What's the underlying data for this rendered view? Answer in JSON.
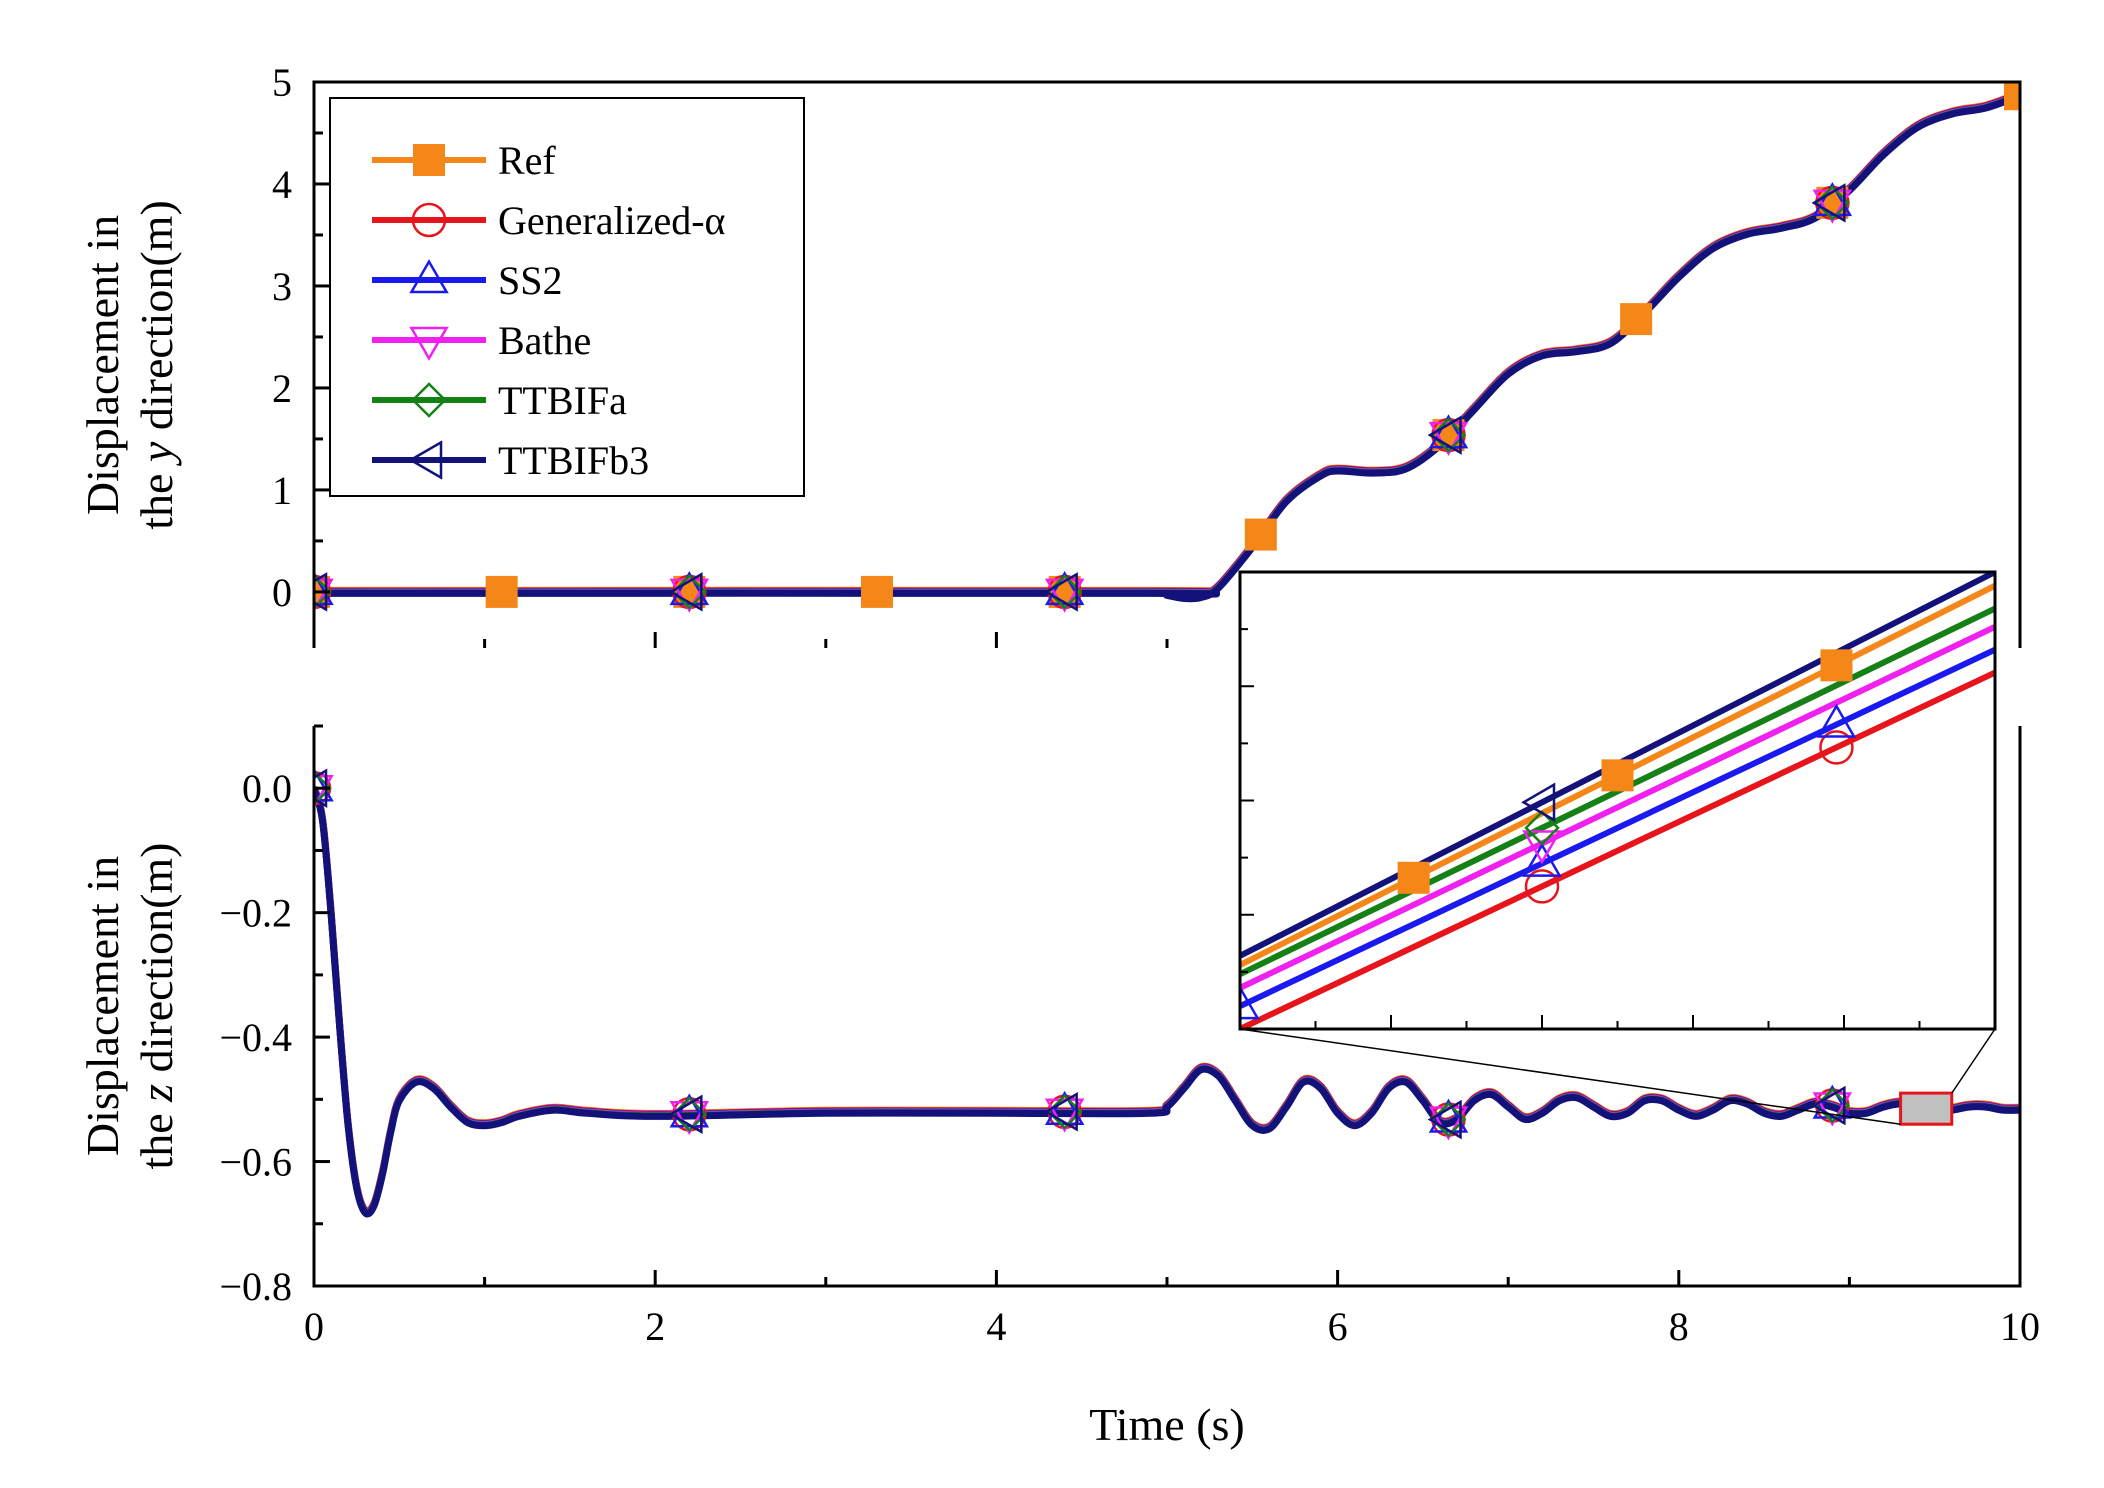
{
  "chart_data": [
    {
      "type": "line",
      "panel": "top",
      "ylabel_lines": [
        "Displacement in",
        "the y direction(m)"
      ],
      "ylabel_italic_letter": "y",
      "xlabel": "Time (s)",
      "xlim": [
        0,
        10
      ],
      "ylim": [
        -0.55,
        5
      ],
      "xticks": [
        "0",
        "2",
        "4",
        "6",
        "8",
        "10"
      ],
      "yticks": [
        "0",
        "1",
        "2",
        "3",
        "4",
        "5"
      ],
      "legend": [
        "Ref",
        "Generalized-α",
        "SS2",
        "Bathe",
        "TTBIFa",
        "TTBIFb3"
      ],
      "legend_position": "top-left",
      "series": [
        {
          "name": "Ref",
          "color": "#F58718",
          "marker": "square-filled",
          "marker_x": [
            0,
            1.1,
            2.2,
            3.3,
            4.4,
            5.55,
            6.65,
            7.75,
            8.9,
            10
          ]
        },
        {
          "name": "Generalized-α",
          "color": "#E8141B",
          "marker": "circle-open",
          "marker_x": [
            0,
            2.2,
            4.4,
            6.65,
            8.9
          ]
        },
        {
          "name": "SS2",
          "color": "#1A1AF0",
          "marker": "triangle-up-open",
          "marker_x": [
            0,
            2.2,
            4.4,
            6.65,
            8.9
          ]
        },
        {
          "name": "Bathe",
          "color": "#F020F0",
          "marker": "triangle-down-open",
          "marker_x": [
            0,
            2.2,
            4.4,
            6.65,
            8.9
          ]
        },
        {
          "name": "TTBIFa",
          "color": "#158015",
          "marker": "diamond-open",
          "marker_x": [
            0,
            2.2,
            4.4,
            6.65,
            8.9
          ]
        },
        {
          "name": "TTBIFb3",
          "color": "#12127A",
          "marker": "triangle-left-open",
          "marker_x": [
            0,
            2.2,
            4.4,
            6.65,
            8.9
          ]
        }
      ],
      "curve": {
        "t": [
          0,
          4.9,
          5.0,
          5.1,
          5.2,
          5.3,
          5.5,
          5.7,
          5.9,
          6.0,
          6.2,
          6.4,
          6.6,
          6.8,
          7.0,
          7.2,
          7.4,
          7.6,
          7.8,
          8.0,
          8.2,
          8.4,
          8.6,
          8.8,
          9.0,
          9.2,
          9.4,
          9.6,
          9.8,
          10.0
        ],
        "y": [
          0,
          0,
          -0.02,
          -0.05,
          -0.04,
          0.05,
          0.45,
          0.9,
          1.15,
          1.2,
          1.18,
          1.22,
          1.45,
          1.8,
          2.15,
          2.33,
          2.37,
          2.45,
          2.75,
          3.1,
          3.38,
          3.52,
          3.58,
          3.68,
          3.95,
          4.3,
          4.57,
          4.7,
          4.76,
          4.88
        ]
      }
    },
    {
      "type": "line",
      "panel": "bottom",
      "ylabel_lines": [
        "Displacement in",
        "the z direction(m)"
      ],
      "ylabel_italic_letter": "z",
      "xlabel": "Time (s)",
      "xlim": [
        0,
        10
      ],
      "ylim": [
        -0.8,
        0.1
      ],
      "xticks": [
        "0",
        "2",
        "4",
        "6",
        "8",
        "10"
      ],
      "yticks": [
        "0.0",
        "−0.2",
        "−0.4",
        "−0.6",
        "−0.8"
      ],
      "marker_x": [
        0,
        2.2,
        4.4,
        6.65,
        8.9
      ],
      "curve": {
        "t": [
          0,
          0.05,
          0.1,
          0.15,
          0.2,
          0.25,
          0.3,
          0.35,
          0.4,
          0.45,
          0.5,
          0.6,
          0.7,
          0.8,
          0.9,
          1.0,
          1.1,
          1.2,
          1.4,
          1.6,
          2.0,
          3.0,
          4.0,
          4.9,
          5.0,
          5.1,
          5.2,
          5.3,
          5.4,
          5.5,
          5.6,
          5.7,
          5.8,
          5.9,
          6.0,
          6.1,
          6.2,
          6.3,
          6.4,
          6.5,
          6.6,
          6.7,
          6.8,
          6.9,
          7.0,
          7.1,
          7.2,
          7.3,
          7.4,
          7.5,
          7.6,
          7.7,
          7.8,
          7.9,
          8.0,
          8.1,
          8.2,
          8.3,
          8.4,
          8.5,
          8.6,
          8.7,
          8.8,
          8.9,
          9.0,
          9.1,
          9.2,
          9.3,
          9.4,
          9.5,
          9.6,
          9.7,
          9.8,
          9.9,
          10.0
        ],
        "y": [
          0,
          -0.05,
          -0.2,
          -0.38,
          -0.54,
          -0.64,
          -0.68,
          -0.67,
          -0.62,
          -0.55,
          -0.5,
          -0.47,
          -0.48,
          -0.51,
          -0.535,
          -0.54,
          -0.535,
          -0.525,
          -0.515,
          -0.52,
          -0.525,
          -0.52,
          -0.52,
          -0.52,
          -0.51,
          -0.48,
          -0.45,
          -0.46,
          -0.5,
          -0.54,
          -0.545,
          -0.51,
          -0.47,
          -0.48,
          -0.52,
          -0.54,
          -0.52,
          -0.48,
          -0.47,
          -0.5,
          -0.535,
          -0.53,
          -0.5,
          -0.49,
          -0.51,
          -0.53,
          -0.52,
          -0.5,
          -0.495,
          -0.51,
          -0.525,
          -0.52,
          -0.5,
          -0.5,
          -0.515,
          -0.525,
          -0.515,
          -0.5,
          -0.505,
          -0.52,
          -0.525,
          -0.515,
          -0.505,
          -0.51,
          -0.52,
          -0.52,
          -0.51,
          -0.505,
          -0.51,
          -0.515,
          -0.515,
          -0.51,
          -0.51,
          -0.515,
          -0.515
        ]
      },
      "highlight_box": {
        "x": [
          9.3,
          9.6
        ],
        "y": [
          -0.49,
          -0.54
        ]
      }
    },
    {
      "type": "line",
      "panel": "inset",
      "description_label": "zoom",
      "series": [
        {
          "name": "Ref",
          "color": "#F58718",
          "y0": 0.14,
          "y1": 0.97,
          "marker_x": [
            0.23,
            0.5,
            0.79
          ]
        },
        {
          "name": "Generalized-α",
          "color": "#E8141B",
          "y0": 0.0,
          "y1": 0.78,
          "marker_x": [
            0.4,
            0.79
          ]
        },
        {
          "name": "SS2",
          "color": "#1A1AF0",
          "y0": 0.05,
          "y1": 0.83,
          "marker_x": [
            0.0,
            0.4,
            0.79
          ]
        },
        {
          "name": "Bathe",
          "color": "#F020F0",
          "y0": 0.09,
          "y1": 0.88,
          "marker_x": [
            0.4
          ]
        },
        {
          "name": "TTBIFa",
          "color": "#158015",
          "y0": 0.12,
          "y1": 0.92,
          "marker_x": [
            0.4
          ]
        },
        {
          "name": "TTBIFb3",
          "color": "#12127A",
          "y0": 0.16,
          "y1": 1.0,
          "marker_x": [
            0.4
          ]
        }
      ]
    }
  ]
}
